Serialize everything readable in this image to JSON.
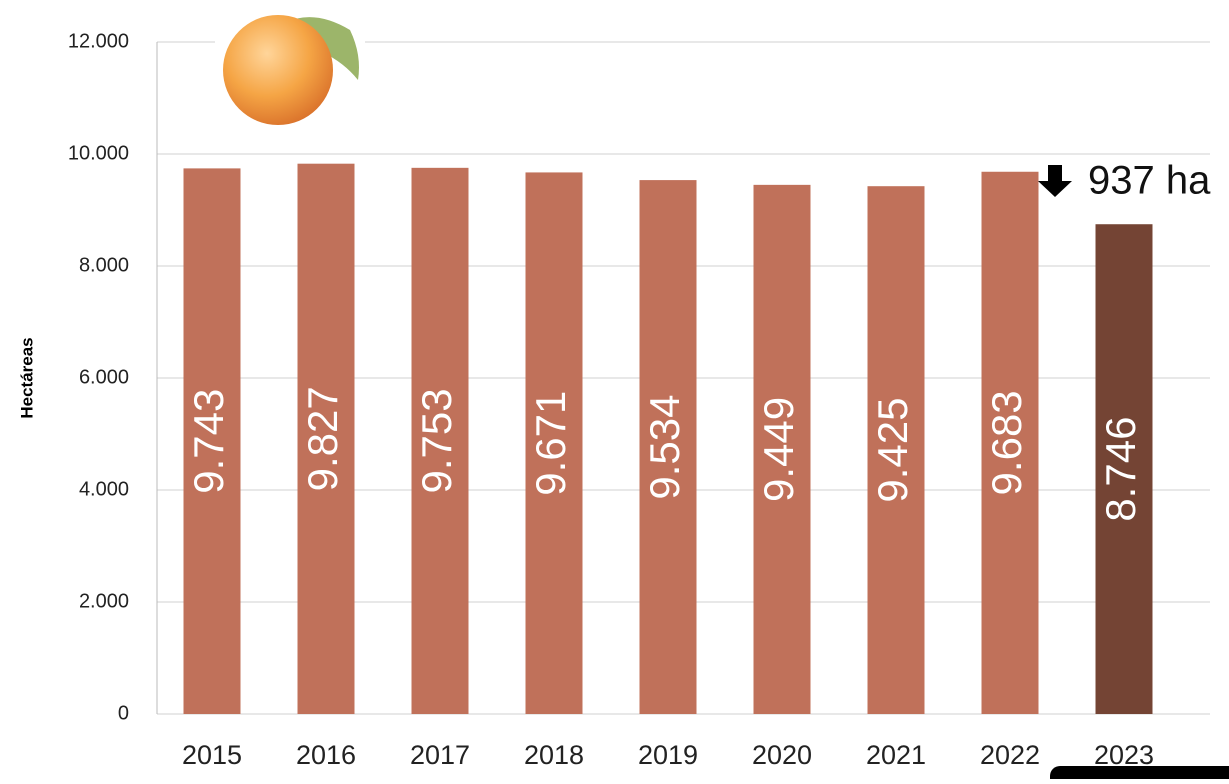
{
  "chart_data": {
    "type": "bar",
    "categories": [
      "2015",
      "2016",
      "2017",
      "2018",
      "2019",
      "2020",
      "2021",
      "2022",
      "2023"
    ],
    "values": [
      9743,
      9827,
      9753,
      9671,
      9534,
      9449,
      9425,
      9683,
      8746
    ],
    "value_labels": [
      "9.743",
      "9.827",
      "9.753",
      "9.671",
      "9.534",
      "9.449",
      "9.425",
      "9.683",
      "8.746"
    ],
    "colors": [
      "#c0715a",
      "#c0715a",
      "#c0715a",
      "#c0715a",
      "#c0715a",
      "#c0715a",
      "#c0715a",
      "#c0715a",
      "#744434"
    ],
    "y_axis_label": "Hectáreas",
    "annotation": "937 ha",
    "ylim": [
      0,
      12000
    ],
    "yticks": [
      0,
      {
        "value": 2000,
        "label": "2.000"
      },
      {
        "value": 4000,
        "label": "4.000"
      },
      {
        "value": 6000,
        "label": "6.000"
      },
      {
        "value": 8000,
        "label": "8.000"
      },
      {
        "value": 10000,
        "label": "10.000"
      },
      {
        "value": 12000,
        "label": "12.000"
      }
    ],
    "grid": true
  }
}
